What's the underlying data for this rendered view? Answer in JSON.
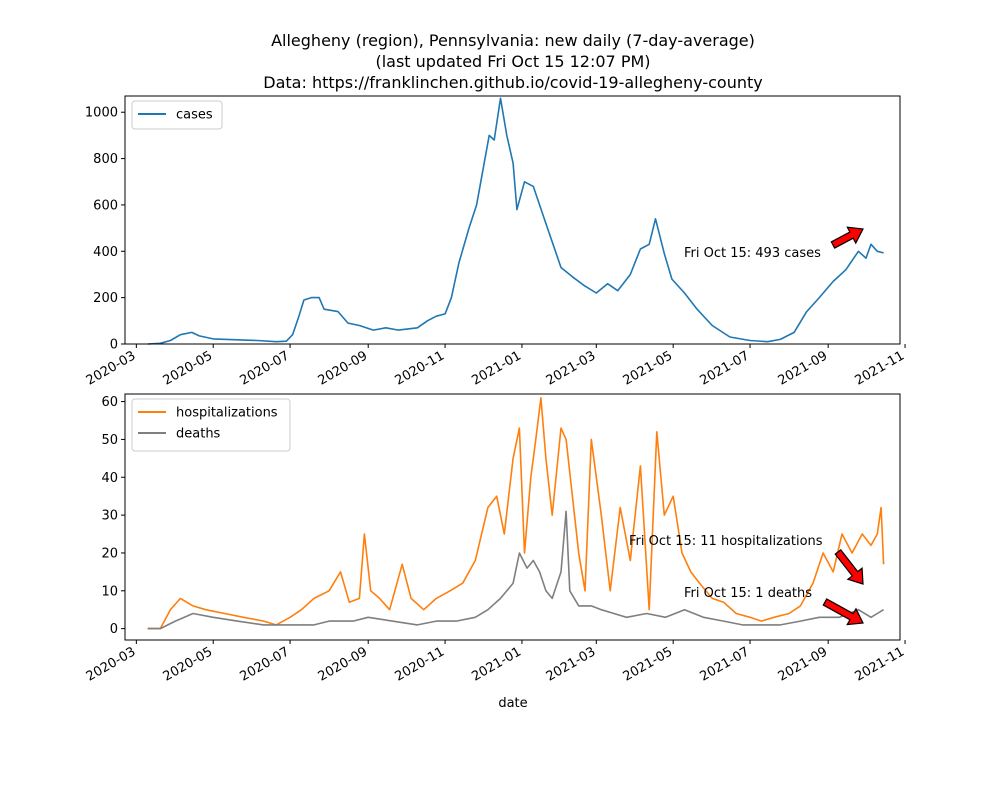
{
  "figure": {
    "title_lines": [
      "Allegheny (region), Pennsylvania: new daily (7-day-average)",
      "(last updated Fri Oct 15 12:07 PM)",
      "Data: https://franklinchen.github.io/covid-19-allegheny-county"
    ],
    "xlabel": "date",
    "x_ticks": [
      "2020-03",
      "2020-05",
      "2020-07",
      "2020-09",
      "2020-11",
      "2021-01",
      "2021-03",
      "2021-05",
      "2021-07",
      "2021-09",
      "2021-11"
    ]
  },
  "colors": {
    "cases": "#1f77b4",
    "hospitalizations": "#ff7f0e",
    "deaths": "#7f7f7f",
    "arrow": "#ff0000"
  },
  "chart_data": [
    {
      "type": "line",
      "x_type": "date",
      "xlim": [
        "2020-02-21",
        "2021-10-28"
      ],
      "ylim": [
        0,
        1070
      ],
      "y_ticks": [
        0,
        200,
        400,
        600,
        800,
        1000
      ],
      "legend_position": "top-left",
      "grid": false,
      "series": [
        {
          "name": "cases",
          "points": [
            [
              "2020-03-10",
              0
            ],
            [
              "2020-03-20",
              3
            ],
            [
              "2020-03-28",
              15
            ],
            [
              "2020-04-05",
              40
            ],
            [
              "2020-04-14",
              50
            ],
            [
              "2020-04-20",
              35
            ],
            [
              "2020-05-01",
              22
            ],
            [
              "2020-05-20",
              18
            ],
            [
              "2020-06-05",
              15
            ],
            [
              "2020-06-20",
              10
            ],
            [
              "2020-06-28",
              12
            ],
            [
              "2020-07-03",
              40
            ],
            [
              "2020-07-08",
              120
            ],
            [
              "2020-07-12",
              190
            ],
            [
              "2020-07-18",
              200
            ],
            [
              "2020-07-24",
              200
            ],
            [
              "2020-07-28",
              150
            ],
            [
              "2020-08-08",
              140
            ],
            [
              "2020-08-16",
              90
            ],
            [
              "2020-08-25",
              80
            ],
            [
              "2020-09-05",
              60
            ],
            [
              "2020-09-15",
              70
            ],
            [
              "2020-09-25",
              60
            ],
            [
              "2020-10-10",
              70
            ],
            [
              "2020-10-18",
              100
            ],
            [
              "2020-10-25",
              120
            ],
            [
              "2020-11-01",
              130
            ],
            [
              "2020-11-06",
              200
            ],
            [
              "2020-11-12",
              350
            ],
            [
              "2020-11-20",
              500
            ],
            [
              "2020-11-26",
              600
            ],
            [
              "2020-12-01",
              750
            ],
            [
              "2020-12-06",
              900
            ],
            [
              "2020-12-10",
              880
            ],
            [
              "2020-12-15",
              1060
            ],
            [
              "2020-12-20",
              900
            ],
            [
              "2020-12-25",
              780
            ],
            [
              "2020-12-28",
              580
            ],
            [
              "2021-01-03",
              700
            ],
            [
              "2021-01-10",
              680
            ],
            [
              "2021-01-20",
              520
            ],
            [
              "2021-02-01",
              330
            ],
            [
              "2021-02-10",
              290
            ],
            [
              "2021-02-20",
              250
            ],
            [
              "2021-03-01",
              220
            ],
            [
              "2021-03-10",
              260
            ],
            [
              "2021-03-18",
              230
            ],
            [
              "2021-03-28",
              300
            ],
            [
              "2021-04-05",
              410
            ],
            [
              "2021-04-12",
              430
            ],
            [
              "2021-04-17",
              540
            ],
            [
              "2021-04-24",
              390
            ],
            [
              "2021-04-30",
              280
            ],
            [
              "2021-05-10",
              220
            ],
            [
              "2021-05-20",
              150
            ],
            [
              "2021-06-01",
              80
            ],
            [
              "2021-06-15",
              30
            ],
            [
              "2021-07-01",
              15
            ],
            [
              "2021-07-15",
              10
            ],
            [
              "2021-07-25",
              20
            ],
            [
              "2021-08-05",
              50
            ],
            [
              "2021-08-15",
              140
            ],
            [
              "2021-08-25",
              200
            ],
            [
              "2021-09-05",
              270
            ],
            [
              "2021-09-15",
              320
            ],
            [
              "2021-09-25",
              400
            ],
            [
              "2021-10-01",
              370
            ],
            [
              "2021-10-05",
              430
            ],
            [
              "2021-10-10",
              400
            ],
            [
              "2021-10-15",
              393
            ]
          ]
        }
      ],
      "annotations": [
        {
          "text": "Fri Oct 15: 493 cases",
          "direction": "up"
        }
      ]
    },
    {
      "type": "line",
      "x_type": "date",
      "xlim": [
        "2020-02-21",
        "2021-10-28"
      ],
      "ylim": [
        -3,
        62
      ],
      "y_ticks": [
        0,
        10,
        20,
        30,
        40,
        50,
        60
      ],
      "legend_position": "top-left",
      "grid": false,
      "series": [
        {
          "name": "hospitalizations",
          "points": [
            [
              "2020-03-10",
              0
            ],
            [
              "2020-03-20",
              0
            ],
            [
              "2020-03-28",
              5
            ],
            [
              "2020-04-05",
              8
            ],
            [
              "2020-04-15",
              6
            ],
            [
              "2020-04-25",
              5
            ],
            [
              "2020-05-10",
              4
            ],
            [
              "2020-05-25",
              3
            ],
            [
              "2020-06-10",
              2
            ],
            [
              "2020-06-20",
              1
            ],
            [
              "2020-07-01",
              3
            ],
            [
              "2020-07-10",
              5
            ],
            [
              "2020-07-20",
              8
            ],
            [
              "2020-08-01",
              10
            ],
            [
              "2020-08-10",
              15
            ],
            [
              "2020-08-17",
              7
            ],
            [
              "2020-08-25",
              8
            ],
            [
              "2020-08-29",
              25
            ],
            [
              "2020-09-03",
              10
            ],
            [
              "2020-09-10",
              8
            ],
            [
              "2020-09-18",
              5
            ],
            [
              "2020-09-28",
              17
            ],
            [
              "2020-10-05",
              8
            ],
            [
              "2020-10-15",
              5
            ],
            [
              "2020-10-25",
              8
            ],
            [
              "2020-11-05",
              10
            ],
            [
              "2020-11-15",
              12
            ],
            [
              "2020-11-25",
              18
            ],
            [
              "2020-12-05",
              32
            ],
            [
              "2020-12-12",
              35
            ],
            [
              "2020-12-18",
              25
            ],
            [
              "2020-12-25",
              45
            ],
            [
              "2020-12-30",
              53
            ],
            [
              "2021-01-03",
              20
            ],
            [
              "2021-01-08",
              40
            ],
            [
              "2021-01-12",
              50
            ],
            [
              "2021-01-16",
              61
            ],
            [
              "2021-01-20",
              45
            ],
            [
              "2021-01-25",
              30
            ],
            [
              "2021-02-01",
              53
            ],
            [
              "2021-02-05",
              50
            ],
            [
              "2021-02-10",
              35
            ],
            [
              "2021-02-15",
              20
            ],
            [
              "2021-02-20",
              10
            ],
            [
              "2021-02-25",
              50
            ],
            [
              "2021-03-05",
              30
            ],
            [
              "2021-03-12",
              10
            ],
            [
              "2021-03-20",
              32
            ],
            [
              "2021-03-28",
              18
            ],
            [
              "2021-04-05",
              43
            ],
            [
              "2021-04-12",
              5
            ],
            [
              "2021-04-18",
              52
            ],
            [
              "2021-04-24",
              30
            ],
            [
              "2021-05-01",
              35
            ],
            [
              "2021-05-08",
              20
            ],
            [
              "2021-05-15",
              15
            ],
            [
              "2021-05-22",
              12
            ],
            [
              "2021-06-01",
              8
            ],
            [
              "2021-06-10",
              7
            ],
            [
              "2021-06-20",
              4
            ],
            [
              "2021-07-01",
              3
            ],
            [
              "2021-07-10",
              2
            ],
            [
              "2021-07-20",
              3
            ],
            [
              "2021-08-01",
              4
            ],
            [
              "2021-08-10",
              6
            ],
            [
              "2021-08-20",
              12
            ],
            [
              "2021-08-28",
              20
            ],
            [
              "2021-09-05",
              15
            ],
            [
              "2021-09-12",
              25
            ],
            [
              "2021-09-20",
              20
            ],
            [
              "2021-09-28",
              25
            ],
            [
              "2021-10-05",
              22
            ],
            [
              "2021-10-10",
              25
            ],
            [
              "2021-10-13",
              32
            ],
            [
              "2021-10-15",
              17
            ]
          ]
        },
        {
          "name": "deaths",
          "points": [
            [
              "2020-03-10",
              0
            ],
            [
              "2020-03-20",
              0
            ],
            [
              "2020-04-01",
              2
            ],
            [
              "2020-04-15",
              4
            ],
            [
              "2020-05-01",
              3
            ],
            [
              "2020-05-20",
              2
            ],
            [
              "2020-06-10",
              1
            ],
            [
              "2020-07-01",
              1
            ],
            [
              "2020-07-20",
              1
            ],
            [
              "2020-08-01",
              2
            ],
            [
              "2020-08-20",
              2
            ],
            [
              "2020-09-01",
              3
            ],
            [
              "2020-09-20",
              2
            ],
            [
              "2020-10-10",
              1
            ],
            [
              "2020-10-25",
              2
            ],
            [
              "2020-11-10",
              2
            ],
            [
              "2020-11-25",
              3
            ],
            [
              "2020-12-05",
              5
            ],
            [
              "2020-12-15",
              8
            ],
            [
              "2020-12-25",
              12
            ],
            [
              "2020-12-30",
              20
            ],
            [
              "2021-01-05",
              16
            ],
            [
              "2021-01-10",
              18
            ],
            [
              "2021-01-15",
              15
            ],
            [
              "2021-01-20",
              10
            ],
            [
              "2021-01-25",
              8
            ],
            [
              "2021-02-01",
              15
            ],
            [
              "2021-02-05",
              31
            ],
            [
              "2021-02-08",
              10
            ],
            [
              "2021-02-15",
              6
            ],
            [
              "2021-02-25",
              6
            ],
            [
              "2021-03-05",
              5
            ],
            [
              "2021-03-15",
              4
            ],
            [
              "2021-03-25",
              3
            ],
            [
              "2021-04-10",
              4
            ],
            [
              "2021-04-25",
              3
            ],
            [
              "2021-05-10",
              5
            ],
            [
              "2021-05-25",
              3
            ],
            [
              "2021-06-10",
              2
            ],
            [
              "2021-06-25",
              1
            ],
            [
              "2021-07-10",
              1
            ],
            [
              "2021-07-25",
              1
            ],
            [
              "2021-08-10",
              2
            ],
            [
              "2021-08-25",
              3
            ],
            [
              "2021-09-10",
              3
            ],
            [
              "2021-09-25",
              5
            ],
            [
              "2021-10-05",
              3
            ],
            [
              "2021-10-10",
              4
            ],
            [
              "2021-10-15",
              5
            ]
          ]
        }
      ],
      "annotations": [
        {
          "text": "Fri Oct 15: 11 hospitalizations",
          "direction": "down"
        },
        {
          "text": "Fri Oct 15: 1 deaths",
          "direction": "down"
        }
      ]
    }
  ]
}
